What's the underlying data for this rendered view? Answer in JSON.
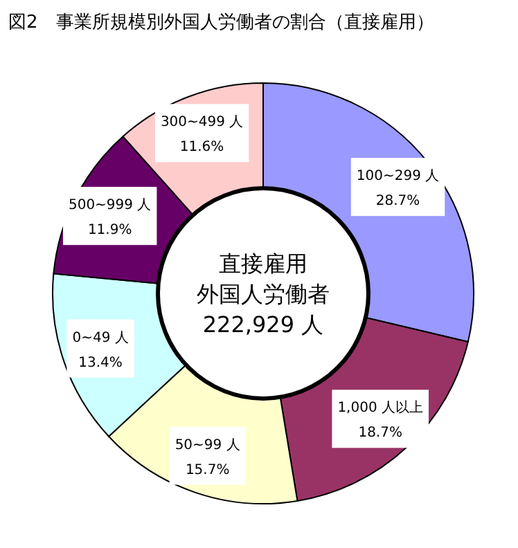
{
  "chart_data": {
    "type": "donut",
    "title": "図2　事業所規模別外国人労働者の割合（直接雇用）",
    "categories": [
      "100~299 人",
      "1,000 人以上",
      "50~99 人",
      "0~49 人",
      "500~999 人",
      "300~499 人"
    ],
    "values": [
      28.7,
      18.7,
      15.7,
      13.4,
      11.9,
      11.6
    ],
    "value_labels": [
      "28.7%",
      "18.7%",
      "15.7%",
      "13.4%",
      "11.9%",
      "11.6%"
    ],
    "colors": [
      "#9999ff",
      "#993366",
      "#ffffcc",
      "#ccffff",
      "#660066",
      "#ffcccc"
    ],
    "annotations": [
      "直接雇用",
      "外国人労働者",
      "222,929 人"
    ],
    "legend": false
  }
}
